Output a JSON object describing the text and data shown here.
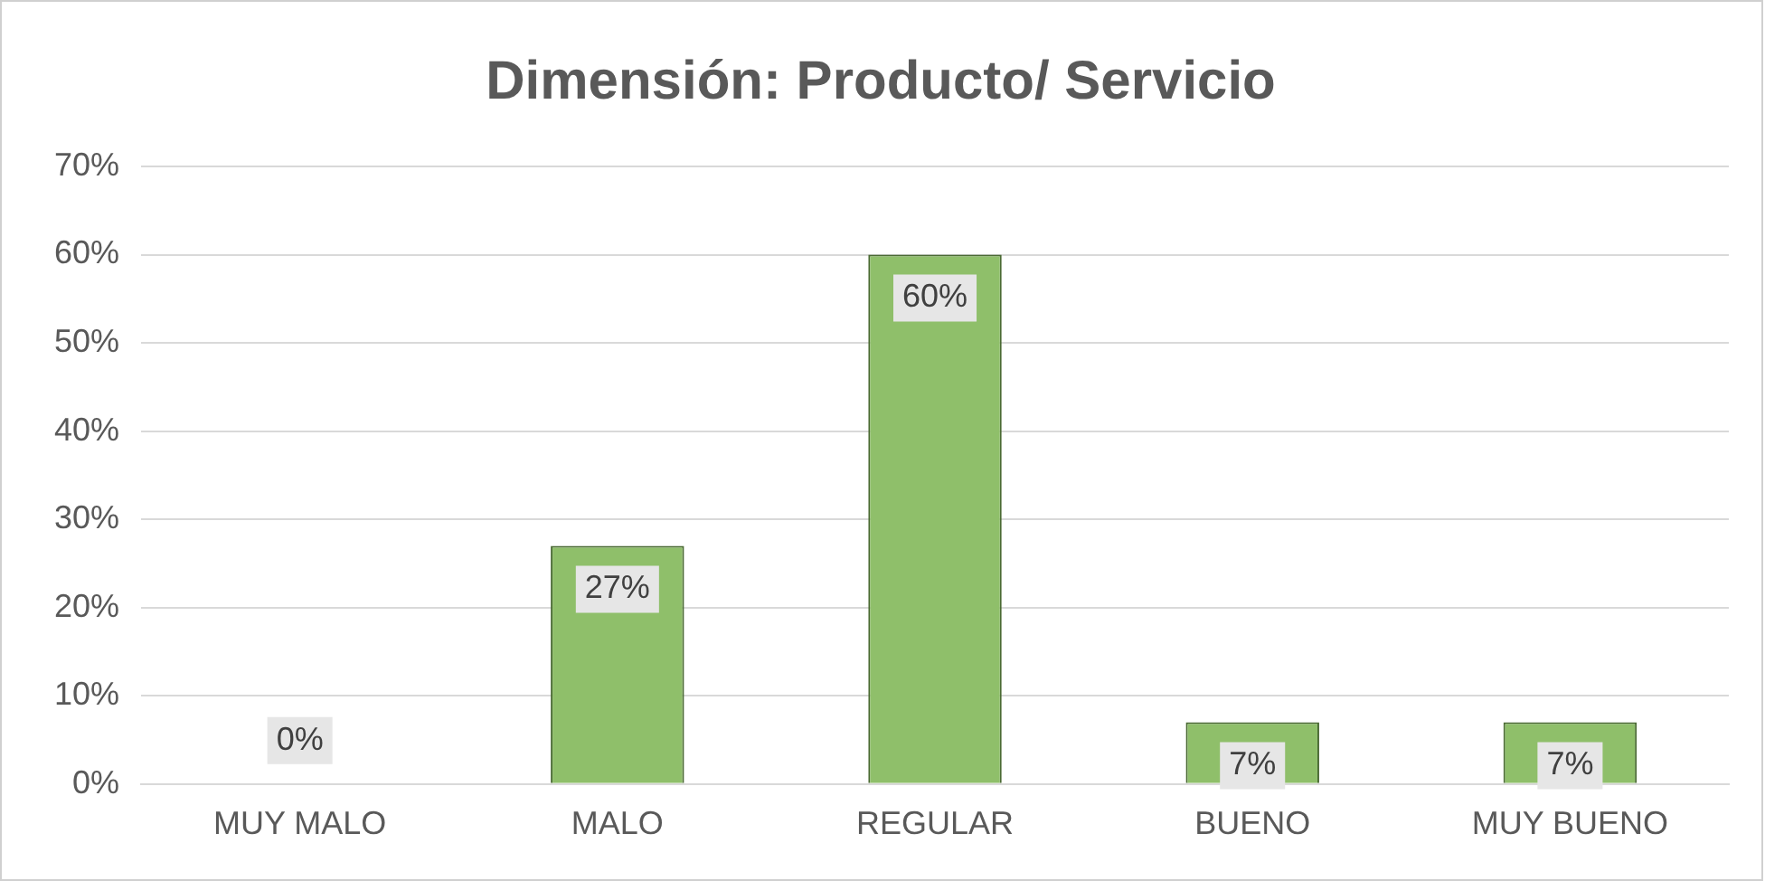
{
  "chart_data": {
    "type": "bar",
    "title": "Dimensión: Producto/ Servicio",
    "categories": [
      "MUY MALO",
      "MALO",
      "REGULAR",
      "BUENO",
      "MUY BUENO"
    ],
    "values": [
      0,
      27,
      60,
      7,
      7
    ],
    "color": "#8fbf6a",
    "value_labels": [
      "0%",
      "27%",
      "60%",
      "7%",
      "7%"
    ],
    "ylim": [
      0,
      70
    ],
    "yticks": [
      {
        "value": 0,
        "label": "0%"
      },
      {
        "value": 10,
        "label": "10%"
      },
      {
        "value": 20,
        "label": "20%"
      },
      {
        "value": 30,
        "label": "30%"
      },
      {
        "value": 40,
        "label": "40%"
      },
      {
        "value": 50,
        "label": "50%"
      },
      {
        "value": 60,
        "label": "60%"
      },
      {
        "value": 70,
        "label": "70%"
      }
    ],
    "grid": "y",
    "legend": false
  }
}
